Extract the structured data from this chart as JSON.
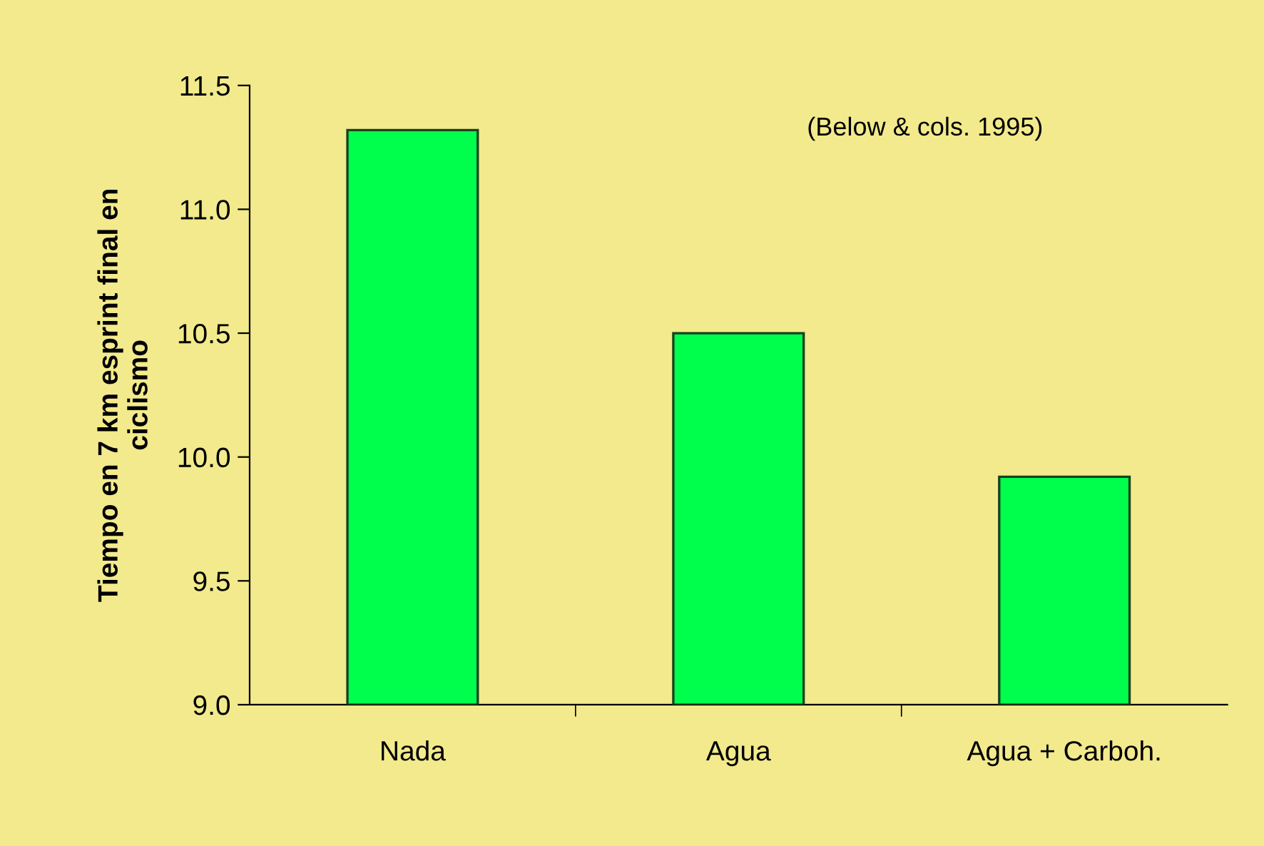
{
  "chart_data": {
    "type": "bar",
    "ylabel": "Tiempo en 7 km esprint final en\nciclismo",
    "annotations": [
      "(Below & cols. 1995)"
    ],
    "categories": [
      "Nada",
      "Agua",
      "Agua + Carboh."
    ],
    "values": [
      11.32,
      10.5,
      9.92
    ],
    "color": "#00ff4c",
    "ylim": [
      9.0,
      11.5
    ],
    "yticks": [
      {
        "value": 9.0,
        "label": "9.0"
      },
      9.5,
      {
        "value": 10.0,
        "label": "10.0"
      },
      10.5,
      {
        "value": 11.0,
        "label": "11.0"
      },
      11.5
    ],
    "grid": false,
    "legend": false
  }
}
